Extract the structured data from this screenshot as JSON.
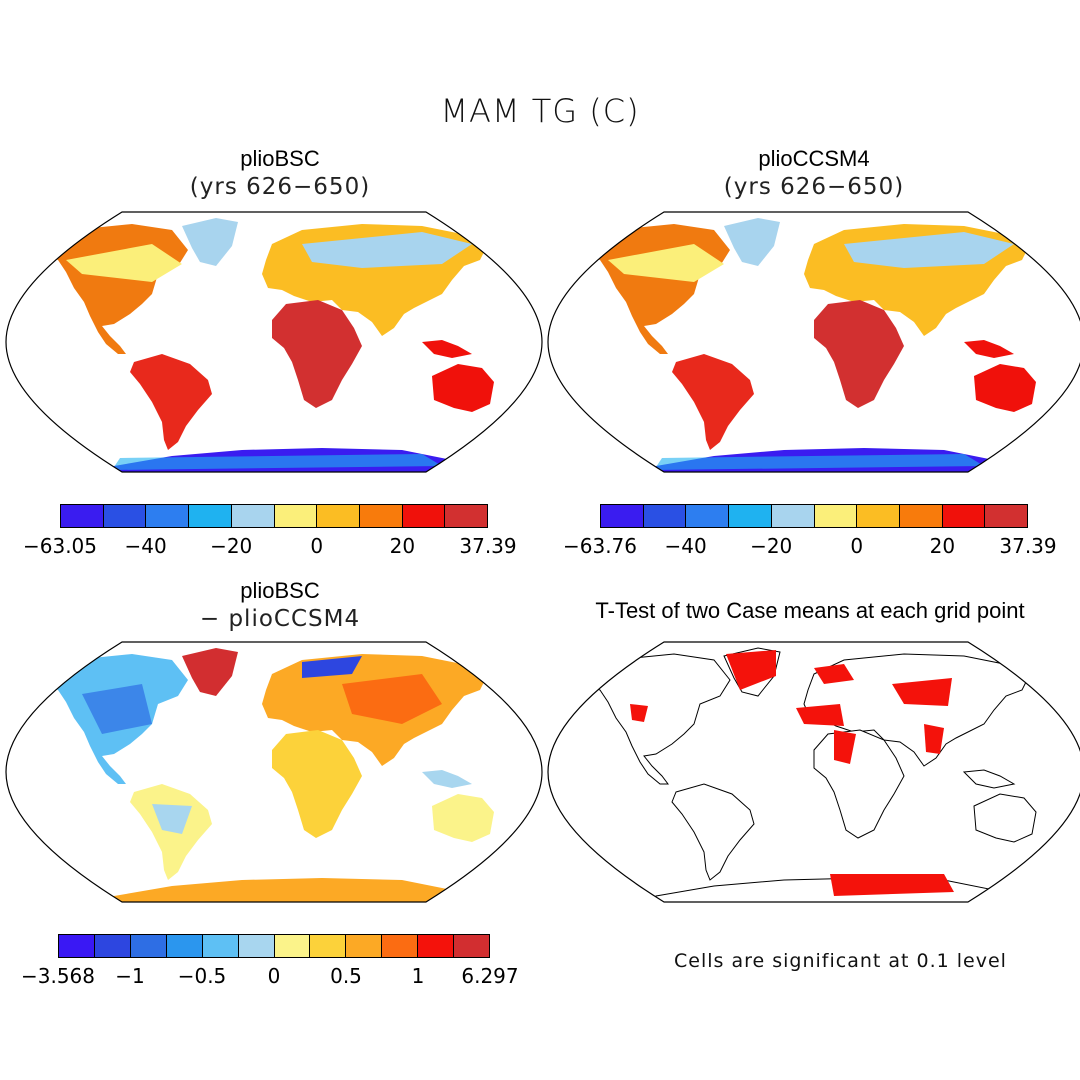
{
  "main_title": "MAM TG (C)",
  "panels": [
    {
      "title": "plioBSC",
      "subtitle": "(yrs 626−650)",
      "colorbar": {
        "colors": [
          "#3a1cf0",
          "#2a50e4",
          "#2d7ef0",
          "#1fb2f0",
          "#a8d4ee",
          "#fbef7a",
          "#fbbd23",
          "#f87b0c",
          "#f0110b",
          "#d23030"
        ],
        "ticks": [
          "−63.05",
          "−40",
          "−20",
          "0",
          "20",
          "37.39"
        ]
      }
    },
    {
      "title": "plioCCSM4",
      "subtitle": "(yrs 626−650)",
      "colorbar": {
        "colors": [
          "#3a1cf0",
          "#2a50e4",
          "#2d7ef0",
          "#1fb2f0",
          "#a8d4ee",
          "#fbef7a",
          "#fbbd23",
          "#f87b0c",
          "#f0110b",
          "#d23030"
        ],
        "ticks": [
          "−63.76",
          "−40",
          "−20",
          "0",
          "20",
          "37.39"
        ]
      }
    },
    {
      "title": "plioBSC",
      "subtitle": "− plioCCSM4",
      "colorbar": {
        "colors": [
          "#3a18f4",
          "#2d46e0",
          "#2e6ee4",
          "#2b96ee",
          "#5ec0f4",
          "#a8d6ef",
          "#fbf38a",
          "#fcd23a",
          "#fca925",
          "#fb6c12",
          "#f4120b",
          "#d22e30"
        ],
        "ticks": [
          "−3.568",
          "−1",
          "−0.5",
          "0",
          "0.5",
          "1",
          "6.297"
        ]
      }
    },
    {
      "title": "T-Test of two Case means at each grid point",
      "note": "Cells are significant at 0.1 level"
    }
  ]
}
